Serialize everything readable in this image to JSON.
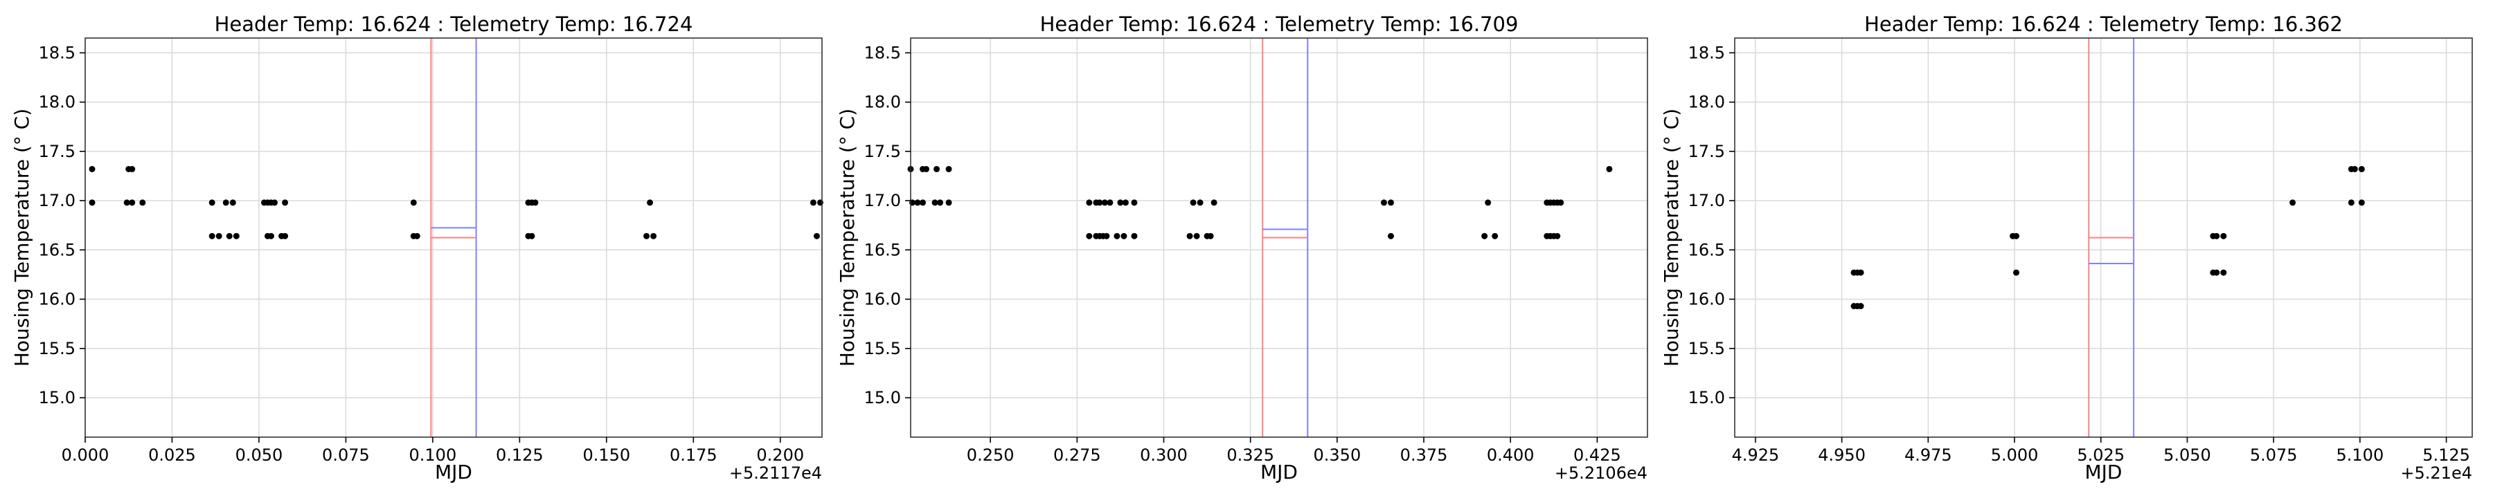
{
  "figure": {
    "colors": {
      "background": "#ffffff",
      "grid": "#d9d9d9",
      "points": "#000000",
      "header_marker": "#ff8080",
      "telemetry_marker": "#8080ff"
    }
  },
  "chart_data": [
    {
      "type": "scatter",
      "title": "Header Temp: 16.624 : Telemetry Temp: 16.724",
      "xlabel": "MJD",
      "ylabel": "Housing Temperature (° C)",
      "x_offset_label": "+5.2117e4",
      "xlim": [
        0.0,
        0.212
      ],
      "ylim": [
        14.6,
        18.65
      ],
      "grid": true,
      "xticks": [
        0.0,
        0.025,
        0.05,
        0.075,
        0.1,
        0.125,
        0.15,
        0.175,
        0.2
      ],
      "xtick_labels": [
        "0.000",
        "0.025",
        "0.050",
        "0.075",
        "0.100",
        "0.125",
        "0.150",
        "0.175",
        "0.200"
      ],
      "yticks": [
        15.0,
        15.5,
        16.0,
        16.5,
        17.0,
        17.5,
        18.0,
        18.5
      ],
      "ytick_labels": [
        "15.0",
        "15.5",
        "16.0",
        "16.5",
        "17.0",
        "17.5",
        "18.0",
        "18.5"
      ],
      "header_window": {
        "x_range": [
          0.0995,
          0.1125
        ],
        "temp": 16.624
      },
      "telemetry_window": {
        "x_range": [
          0.0995,
          0.1125
        ],
        "temp": 16.724
      },
      "points": [
        [
          0.002,
          17.32
        ],
        [
          0.002,
          16.98
        ],
        [
          0.0125,
          17.32
        ],
        [
          0.0135,
          17.32
        ],
        [
          0.012,
          16.98
        ],
        [
          0.0135,
          16.98
        ],
        [
          0.0165,
          16.98
        ],
        [
          0.0365,
          16.98
        ],
        [
          0.0365,
          16.64
        ],
        [
          0.0385,
          16.64
        ],
        [
          0.0405,
          16.98
        ],
        [
          0.0415,
          16.64
        ],
        [
          0.0425,
          16.98
        ],
        [
          0.0435,
          16.64
        ],
        [
          0.0515,
          16.98
        ],
        [
          0.0525,
          16.98
        ],
        [
          0.0535,
          16.98
        ],
        [
          0.0545,
          16.98
        ],
        [
          0.0525,
          16.64
        ],
        [
          0.0535,
          16.64
        ],
        [
          0.0565,
          16.64
        ],
        [
          0.0575,
          16.64
        ],
        [
          0.0575,
          16.98
        ],
        [
          0.0945,
          16.98
        ],
        [
          0.0945,
          16.64
        ],
        [
          0.0955,
          16.64
        ],
        [
          0.1275,
          16.98
        ],
        [
          0.1285,
          16.98
        ],
        [
          0.1295,
          16.98
        ],
        [
          0.1275,
          16.64
        ],
        [
          0.1285,
          16.64
        ],
        [
          0.1625,
          16.98
        ],
        [
          0.1615,
          16.64
        ],
        [
          0.1635,
          16.64
        ],
        [
          0.2095,
          16.98
        ],
        [
          0.2115,
          16.98
        ],
        [
          0.2105,
          16.64
        ]
      ]
    },
    {
      "type": "scatter",
      "title": "Header Temp: 16.624 : Telemetry Temp: 16.709",
      "xlabel": "MJD",
      "ylabel": "Housing Temperature (° C)",
      "x_offset_label": "+5.2106e4",
      "xlim": [
        0.227,
        0.4395
      ],
      "ylim": [
        14.6,
        18.65
      ],
      "grid": true,
      "xticks": [
        0.25,
        0.275,
        0.3,
        0.325,
        0.35,
        0.375,
        0.4,
        0.425
      ],
      "xtick_labels": [
        "0.250",
        "0.275",
        "0.300",
        "0.325",
        "0.350",
        "0.375",
        "0.400",
        "0.425"
      ],
      "yticks": [
        15.0,
        15.5,
        16.0,
        16.5,
        17.0,
        17.5,
        18.0,
        18.5
      ],
      "ytick_labels": [
        "15.0",
        "15.5",
        "16.0",
        "16.5",
        "17.0",
        "17.5",
        "18.0",
        "18.5"
      ],
      "header_window": {
        "x_range": [
          0.3285,
          0.3415
        ],
        "temp": 16.624
      },
      "telemetry_window": {
        "x_range": [
          0.3285,
          0.3415
        ],
        "temp": 16.709
      },
      "points": [
        [
          0.227,
          17.32
        ],
        [
          0.2305,
          17.32
        ],
        [
          0.2315,
          17.32
        ],
        [
          0.2345,
          17.32
        ],
        [
          0.238,
          17.32
        ],
        [
          0.2275,
          16.98
        ],
        [
          0.229,
          16.98
        ],
        [
          0.2305,
          16.98
        ],
        [
          0.234,
          16.98
        ],
        [
          0.2355,
          16.98
        ],
        [
          0.238,
          16.98
        ],
        [
          0.2785,
          16.98
        ],
        [
          0.2805,
          16.98
        ],
        [
          0.2815,
          16.98
        ],
        [
          0.283,
          16.98
        ],
        [
          0.2845,
          16.98
        ],
        [
          0.2875,
          16.98
        ],
        [
          0.289,
          16.98
        ],
        [
          0.2915,
          16.98
        ],
        [
          0.2785,
          16.64
        ],
        [
          0.2805,
          16.64
        ],
        [
          0.2815,
          16.64
        ],
        [
          0.2825,
          16.64
        ],
        [
          0.2835,
          16.64
        ],
        [
          0.2865,
          16.64
        ],
        [
          0.2885,
          16.64
        ],
        [
          0.2915,
          16.64
        ],
        [
          0.3085,
          16.98
        ],
        [
          0.3105,
          16.98
        ],
        [
          0.3145,
          16.98
        ],
        [
          0.3075,
          16.64
        ],
        [
          0.3095,
          16.64
        ],
        [
          0.3125,
          16.64
        ],
        [
          0.3135,
          16.64
        ],
        [
          0.3635,
          16.98
        ],
        [
          0.3655,
          16.98
        ],
        [
          0.3655,
          16.64
        ],
        [
          0.3935,
          16.98
        ],
        [
          0.3925,
          16.64
        ],
        [
          0.3955,
          16.64
        ],
        [
          0.4105,
          16.98
        ],
        [
          0.4115,
          16.98
        ],
        [
          0.4125,
          16.98
        ],
        [
          0.4135,
          16.98
        ],
        [
          0.4145,
          16.98
        ],
        [
          0.4105,
          16.64
        ],
        [
          0.4115,
          16.64
        ],
        [
          0.4125,
          16.64
        ],
        [
          0.4135,
          16.64
        ],
        [
          0.4285,
          17.32
        ]
      ]
    },
    {
      "type": "scatter",
      "title": "Header Temp: 16.624 : Telemetry Temp: 16.362",
      "xlabel": "MJD",
      "ylabel": "Housing Temperature (° C)",
      "x_offset_label": "+5.21e4",
      "xlim": [
        4.919,
        5.1325
      ],
      "ylim": [
        14.6,
        18.65
      ],
      "grid": true,
      "xticks": [
        4.925,
        4.95,
        4.975,
        5.0,
        5.025,
        5.05,
        5.075,
        5.1,
        5.125
      ],
      "xtick_labels": [
        "4.925",
        "4.950",
        "4.975",
        "5.000",
        "5.025",
        "5.050",
        "5.075",
        "5.100",
        "5.125"
      ],
      "yticks": [
        15.0,
        15.5,
        16.0,
        16.5,
        17.0,
        17.5,
        18.0,
        18.5
      ],
      "ytick_labels": [
        "15.0",
        "15.5",
        "16.0",
        "16.5",
        "17.0",
        "17.5",
        "18.0",
        "18.5"
      ],
      "header_window": {
        "x_range": [
          5.0215,
          5.0345
        ],
        "temp": 16.624
      },
      "telemetry_window": {
        "x_range": [
          5.0215,
          5.0345
        ],
        "temp": 16.362
      },
      "points": [
        [
          4.9535,
          16.27
        ],
        [
          4.9545,
          16.27
        ],
        [
          4.9555,
          16.27
        ],
        [
          4.9535,
          15.93
        ],
        [
          4.9545,
          15.93
        ],
        [
          4.9555,
          15.93
        ],
        [
          4.9995,
          16.64
        ],
        [
          5.0005,
          16.64
        ],
        [
          5.0005,
          16.27
        ],
        [
          5.0575,
          16.64
        ],
        [
          5.0585,
          16.64
        ],
        [
          5.0605,
          16.64
        ],
        [
          5.0575,
          16.27
        ],
        [
          5.0585,
          16.27
        ],
        [
          5.0605,
          16.27
        ],
        [
          5.0805,
          16.98
        ],
        [
          5.0975,
          17.32
        ],
        [
          5.0985,
          17.32
        ],
        [
          5.1005,
          17.32
        ],
        [
          5.0975,
          16.98
        ],
        [
          5.1005,
          16.98
        ]
      ]
    }
  ]
}
